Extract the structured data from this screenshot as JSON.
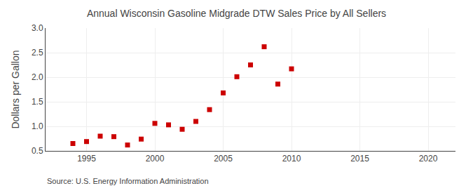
{
  "chart_data": {
    "type": "scatter",
    "title": "Annual Wisconsin Gasoline Midgrade DTW Sales Price by All Sellers",
    "ylabel": "Dollars per Gallon",
    "annotations": [
      "Source: U.S. Energy Information Administration"
    ],
    "x": [
      1994,
      1995,
      1996,
      1997,
      1998,
      1999,
      2000,
      2001,
      2002,
      2003,
      2004,
      2005,
      2006,
      2007,
      2008,
      2009,
      2010
    ],
    "values": [
      0.65,
      0.69,
      0.8,
      0.79,
      0.62,
      0.74,
      1.06,
      1.03,
      0.94,
      1.1,
      1.34,
      1.68,
      2.01,
      2.25,
      2.62,
      1.86,
      2.17
    ],
    "color": "#cc0000",
    "marker": "square",
    "xlim": [
      1992,
      2022
    ],
    "ylim": [
      0.5,
      3.0
    ],
    "xticks": [
      1995,
      2000,
      2005,
      2010,
      2015,
      2020
    ],
    "yticks": [
      0.5,
      {
        "value": 1.0,
        "label": "1.0"
      },
      1.5,
      {
        "value": 2.0,
        "label": "2.0"
      },
      2.5,
      {
        "value": 3.0,
        "label": "3.0"
      }
    ],
    "grid": true
  }
}
